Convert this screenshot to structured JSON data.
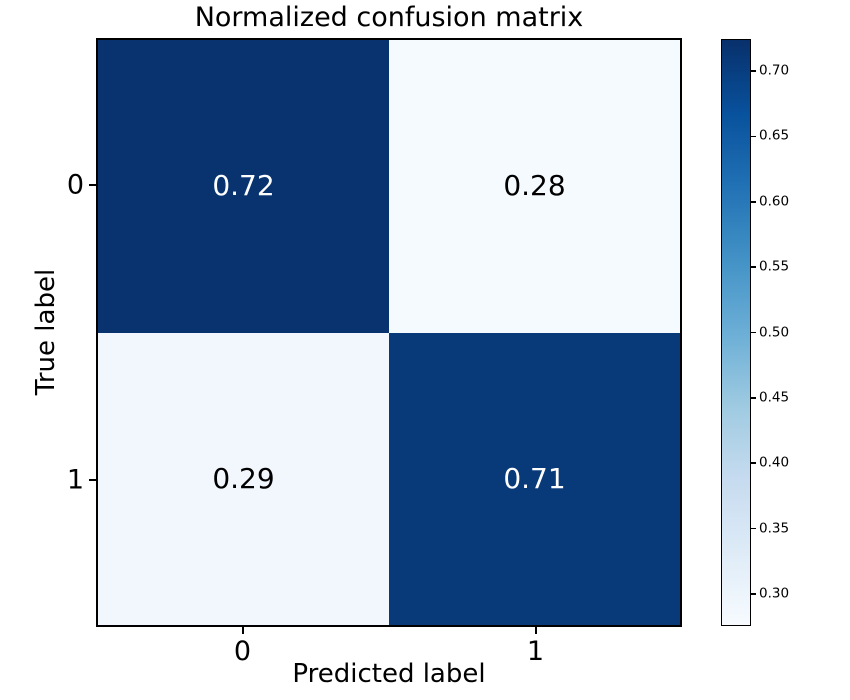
{
  "chart_data": {
    "type": "heatmap",
    "title": "Normalized confusion matrix",
    "xlabel": "Predicted label",
    "ylabel": "True label",
    "x_tick_labels": [
      "0",
      "1"
    ],
    "y_tick_labels": [
      "0",
      "1"
    ],
    "matrix": [
      [
        0.72,
        0.28
      ],
      [
        0.29,
        0.71
      ]
    ],
    "cell_text": [
      [
        "0.72",
        "0.28"
      ],
      [
        "0.29",
        "0.71"
      ]
    ],
    "cell_text_colors": [
      [
        "#ffffff",
        "#000000"
      ],
      [
        "#000000",
        "#ffffff"
      ]
    ],
    "colormap": "Blues",
    "colormap_stops": [
      [
        0.0,
        "#f7fbff"
      ],
      [
        0.125,
        "#deebf7"
      ],
      [
        0.25,
        "#c6dbef"
      ],
      [
        0.375,
        "#9ecae1"
      ],
      [
        0.5,
        "#6baed6"
      ],
      [
        0.625,
        "#4292c6"
      ],
      [
        0.75,
        "#2171b5"
      ],
      [
        0.875,
        "#08519c"
      ],
      [
        1.0,
        "#08306b"
      ]
    ],
    "colorbar": {
      "position": "right",
      "tick_labels": [
        "0.70",
        "0.65",
        "0.60",
        "0.55",
        "0.50",
        "0.45",
        "0.40",
        "0.35",
        "0.30"
      ],
      "range": [
        0.2755,
        0.7245
      ]
    },
    "grid": false,
    "legend": null,
    "background_color": "#ffffff",
    "spine_color": "#000000"
  }
}
